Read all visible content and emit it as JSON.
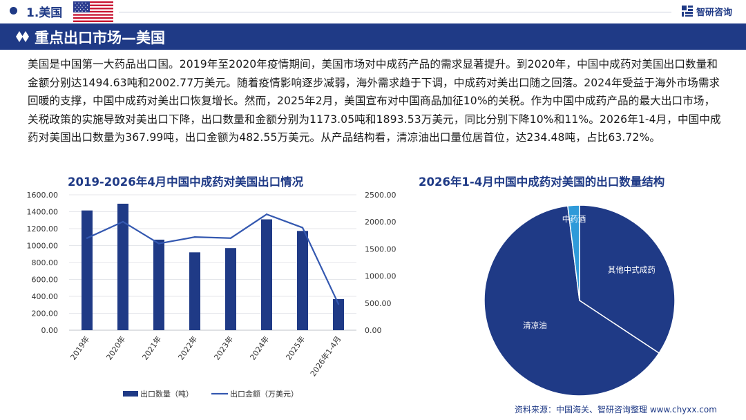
{
  "header": {
    "title": "1.美国",
    "logo_text": "智研咨询"
  },
  "banner": {
    "title": "重点出口市场—美国"
  },
  "paragraph": "美国是中国第一大药品出口国。2019年至2020年疫情期间，美国市场对中成药产品的需求显著提升。到2020年，中国中成药对美国出口数量和金额分别达1494.63吨和2002.77万美元。随着疫情影响逐步减弱，海外需求趋于下调，中成药对美出口随之回落。2024年受益于海外市场需求回暖的支撑，中国中成药对美出口恢复增长。然而，2025年2月，美国宣布对中国商品加征10%的关税。作为中国中成药产品的最大出口市场，关税政策的实施导致对美出口下降，出口数量和金额分别为1173.05吨和1893.53万美元，同比分别下降10%和11%。2026年1-4月，中国中成药对美国出口数量为367.99吨，出口金额为482.55万美元。从产品结构看，清凉油出口量位居首位，达234.48吨，占比63.72%。",
  "source": "资料来源：中国海关、智研咨询整理 www.chyxx.com",
  "colors": {
    "primary": "#1f3a86",
    "line": "#3458b0",
    "pie_main": "#1f3a86",
    "pie_light": "#2e9ad9"
  },
  "chart_data": [
    {
      "type": "bar",
      "title": "2019-2026年4月中国中成药对美国出口情况",
      "categories": [
        "2019年",
        "2020年",
        "2021年",
        "2022年",
        "2023年",
        "2024年",
        "2025年",
        "2026年1-4月"
      ],
      "y_left_ticks": [
        "0.00",
        "200.00",
        "400.00",
        "600.00",
        "800.00",
        "1000.00",
        "1200.00",
        "1400.00",
        "1600.00"
      ],
      "y_right_ticks": [
        "0.00",
        "500.00",
        "1000.00",
        "1500.00",
        "2000.00",
        "2500.00"
      ],
      "ylim_left": [
        0,
        1600
      ],
      "ylim_right": [
        0,
        2500
      ],
      "series": [
        {
          "name": "出口数量（吨）",
          "type": "bar",
          "axis": "left",
          "values": [
            1415,
            1494.63,
            1070,
            920,
            970,
            1310,
            1173.05,
            367.99
          ]
        },
        {
          "name": "出口金额（万美元）",
          "type": "line",
          "axis": "right",
          "values": [
            1700,
            2002.77,
            1600,
            1720,
            1700,
            2140,
            1893.53,
            482.55
          ]
        }
      ],
      "legend_position": "bottom"
    },
    {
      "type": "pie",
      "title": "2026年1-4月中国中成药对美国的出口数量结构",
      "slices": [
        {
          "label": "其他中式成药",
          "value": 34.3
        },
        {
          "label": "清凉油",
          "value": 63.72
        },
        {
          "label": "中药酒",
          "value": 1.98
        }
      ]
    }
  ]
}
